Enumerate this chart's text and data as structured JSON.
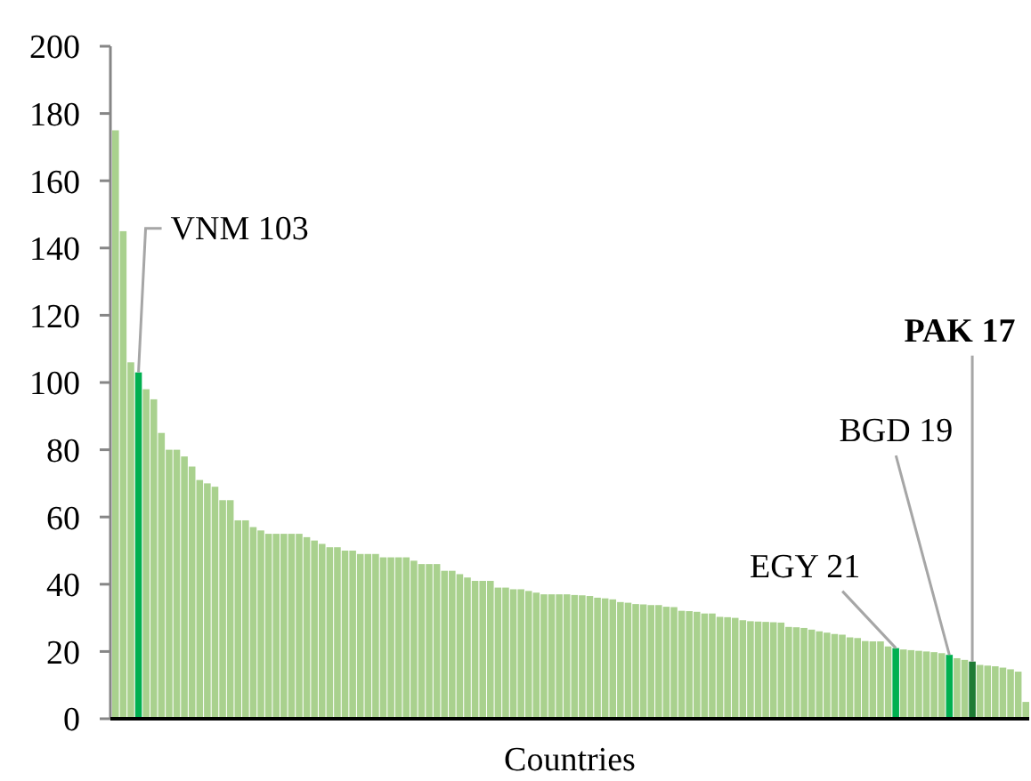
{
  "chart_data": {
    "type": "bar",
    "xlabel": "Countries",
    "categories": [
      null,
      null,
      null,
      null,
      null,
      null,
      null,
      null,
      null,
      null,
      null,
      null,
      null,
      null,
      null,
      null,
      null,
      null,
      null,
      null,
      null,
      null,
      null,
      null,
      null,
      null,
      null,
      null,
      null,
      null,
      null,
      null,
      null,
      null,
      null,
      null,
      null,
      null,
      null,
      null,
      null,
      null,
      null,
      null,
      null,
      null,
      null,
      null,
      null,
      null,
      null,
      null,
      null,
      null,
      null,
      null,
      null,
      null,
      null,
      null,
      null,
      null,
      null,
      null,
      null,
      null,
      null,
      null,
      null,
      null,
      null,
      null,
      null,
      null,
      null,
      null,
      null,
      null,
      null,
      null,
      null,
      null,
      null,
      null,
      null,
      null,
      null,
      null,
      null,
      null,
      null,
      null,
      null,
      null,
      null,
      null,
      null,
      null,
      null,
      null,
      null,
      null,
      null,
      null,
      null,
      null,
      null,
      null,
      null,
      null,
      null,
      null,
      null,
      null,
      null,
      null,
      null,
      null,
      null,
      null
    ],
    "values": [
      175,
      145,
      106,
      103,
      98,
      95,
      85,
      80,
      80,
      78,
      75,
      71,
      70,
      69,
      65,
      65,
      59,
      59,
      57,
      56,
      55,
      55,
      55,
      55,
      55,
      54,
      53,
      52,
      51,
      51,
      50,
      50,
      49,
      49,
      49,
      48,
      48,
      48,
      48,
      47,
      46,
      46,
      46,
      44,
      44,
      43,
      42,
      41,
      41,
      41,
      39,
      39,
      38.5,
      38.5,
      38,
      37.5,
      37,
      37,
      37,
      37,
      36.8,
      36.7,
      36.5,
      36,
      35.8,
      35.5,
      34.7,
      34.5,
      34.1,
      34,
      33.8,
      33.8,
      33.3,
      33.2,
      32.1,
      32,
      31.8,
      31.3,
      31.3,
      30.3,
      30.2,
      30,
      29.3,
      29,
      28.9,
      28.8,
      28.7,
      28.6,
      27.3,
      27.2,
      27,
      26.5,
      26,
      25.6,
      25.2,
      25,
      24.2,
      24,
      23.1,
      23,
      23,
      21.5,
      21,
      20.6,
      20.4,
      20.2,
      20,
      19.8,
      19.5,
      19,
      18,
      17.5,
      17,
      16,
      15.8,
      15.6,
      15.2,
      14.7,
      14,
      5
    ],
    "colors": [
      "#a9d18e",
      "#a9d18e",
      "#a9d18e",
      "#00b050",
      "#a9d18e",
      "#a9d18e",
      "#a9d18e",
      "#a9d18e",
      "#a9d18e",
      "#a9d18e",
      "#a9d18e",
      "#a9d18e",
      "#a9d18e",
      "#a9d18e",
      "#a9d18e",
      "#a9d18e",
      "#a9d18e",
      "#a9d18e",
      "#a9d18e",
      "#a9d18e",
      "#a9d18e",
      "#a9d18e",
      "#a9d18e",
      "#a9d18e",
      "#a9d18e",
      "#a9d18e",
      "#a9d18e",
      "#a9d18e",
      "#a9d18e",
      "#a9d18e",
      "#a9d18e",
      "#a9d18e",
      "#a9d18e",
      "#a9d18e",
      "#a9d18e",
      "#a9d18e",
      "#a9d18e",
      "#a9d18e",
      "#a9d18e",
      "#a9d18e",
      "#a9d18e",
      "#a9d18e",
      "#a9d18e",
      "#a9d18e",
      "#a9d18e",
      "#a9d18e",
      "#a9d18e",
      "#a9d18e",
      "#a9d18e",
      "#a9d18e",
      "#a9d18e",
      "#a9d18e",
      "#a9d18e",
      "#a9d18e",
      "#a9d18e",
      "#a9d18e",
      "#a9d18e",
      "#a9d18e",
      "#a9d18e",
      "#a9d18e",
      "#a9d18e",
      "#a9d18e",
      "#a9d18e",
      "#a9d18e",
      "#a9d18e",
      "#a9d18e",
      "#a9d18e",
      "#a9d18e",
      "#a9d18e",
      "#a9d18e",
      "#a9d18e",
      "#a9d18e",
      "#a9d18e",
      "#a9d18e",
      "#a9d18e",
      "#a9d18e",
      "#a9d18e",
      "#a9d18e",
      "#a9d18e",
      "#a9d18e",
      "#a9d18e",
      "#a9d18e",
      "#a9d18e",
      "#a9d18e",
      "#a9d18e",
      "#a9d18e",
      "#a9d18e",
      "#a9d18e",
      "#a9d18e",
      "#a9d18e",
      "#a9d18e",
      "#a9d18e",
      "#a9d18e",
      "#a9d18e",
      "#a9d18e",
      "#a9d18e",
      "#a9d18e",
      "#a9d18e",
      "#a9d18e",
      "#a9d18e",
      "#a9d18e",
      "#a9d18e",
      "#00b050",
      "#a9d18e",
      "#a9d18e",
      "#a9d18e",
      "#a9d18e",
      "#a9d18e",
      "#a9d18e",
      "#00b050",
      "#a9d18e",
      "#a9d18e",
      "#1e7b34",
      "#a9d18e",
      "#a9d18e",
      "#a9d18e",
      "#a9d18e",
      "#a9d18e",
      "#a9d18e",
      "#a9d18e"
    ],
    "ylim": [
      0,
      200
    ],
    "yticks": [
      0,
      20,
      40,
      60,
      80,
      100,
      120,
      140,
      160,
      180,
      200
    ],
    "annotations": [
      "VNM 103",
      "EGY 21",
      "BGD 19",
      "PAK 17"
    ]
  }
}
